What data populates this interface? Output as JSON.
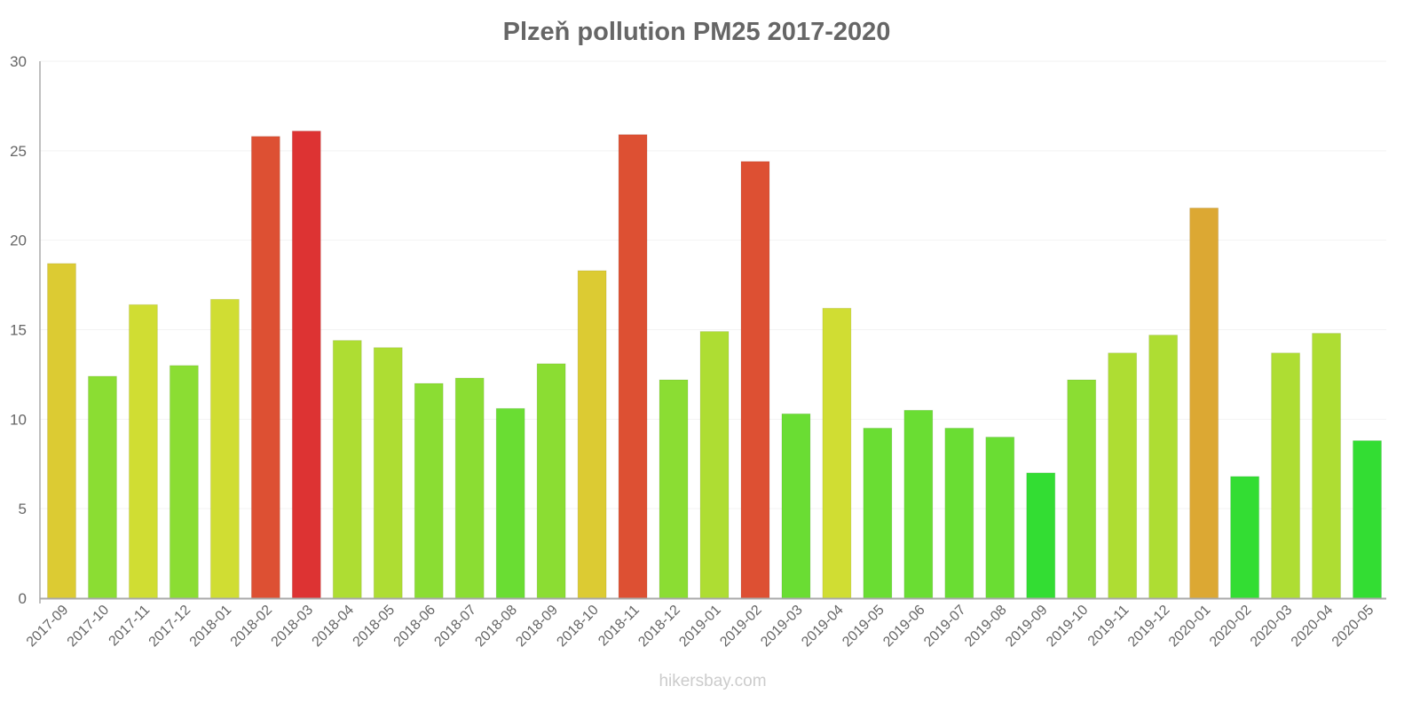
{
  "chart_data": {
    "type": "bar",
    "title": "Plzeň pollution PM25 2017-2020",
    "xlabel": "",
    "ylabel": "",
    "ylim": [
      0,
      30
    ],
    "yticks": [
      0,
      5,
      10,
      15,
      20,
      25,
      30
    ],
    "grid": true,
    "categories": [
      "2017-09",
      "2017-10",
      "2017-11",
      "2017-12",
      "2018-01",
      "2018-02",
      "2018-03",
      "2018-04",
      "2018-05",
      "2018-06",
      "2018-07",
      "2018-08",
      "2018-09",
      "2018-10",
      "2018-11",
      "2018-12",
      "2019-01",
      "2019-02",
      "2019-03",
      "2019-04",
      "2019-05",
      "2019-06",
      "2019-07",
      "2019-08",
      "2019-09",
      "2019-10",
      "2019-11",
      "2019-12",
      "2020-01",
      "2020-02",
      "2020-03",
      "2020-04",
      "2020-05"
    ],
    "values": [
      18.7,
      12.4,
      16.4,
      13.0,
      16.7,
      25.8,
      26.1,
      14.4,
      14.0,
      12.0,
      12.3,
      10.6,
      13.1,
      18.3,
      25.9,
      12.2,
      14.9,
      24.4,
      10.3,
      16.2,
      9.5,
      10.5,
      9.5,
      9.0,
      7.0,
      12.2,
      13.7,
      14.7,
      21.8,
      6.8,
      13.7,
      14.8,
      8.8
    ],
    "colors": [
      "#dccb33",
      "#8bdd33",
      "#d0dd33",
      "#8bdd33",
      "#d0dd33",
      "#dd5033",
      "#dd3333",
      "#aedd33",
      "#aedd33",
      "#8bdd33",
      "#8bdd33",
      "#6add33",
      "#8bdd33",
      "#dccb33",
      "#dd5033",
      "#8bdd33",
      "#aedd33",
      "#dd5033",
      "#6add33",
      "#d0dd33",
      "#6add33",
      "#6add33",
      "#6add33",
      "#6add33",
      "#33dd33",
      "#8bdd33",
      "#aedd33",
      "#aedd33",
      "#dca833",
      "#33dd33",
      "#aedd33",
      "#aedd33",
      "#33dd33"
    ]
  },
  "watermark": "hikersbay.com"
}
